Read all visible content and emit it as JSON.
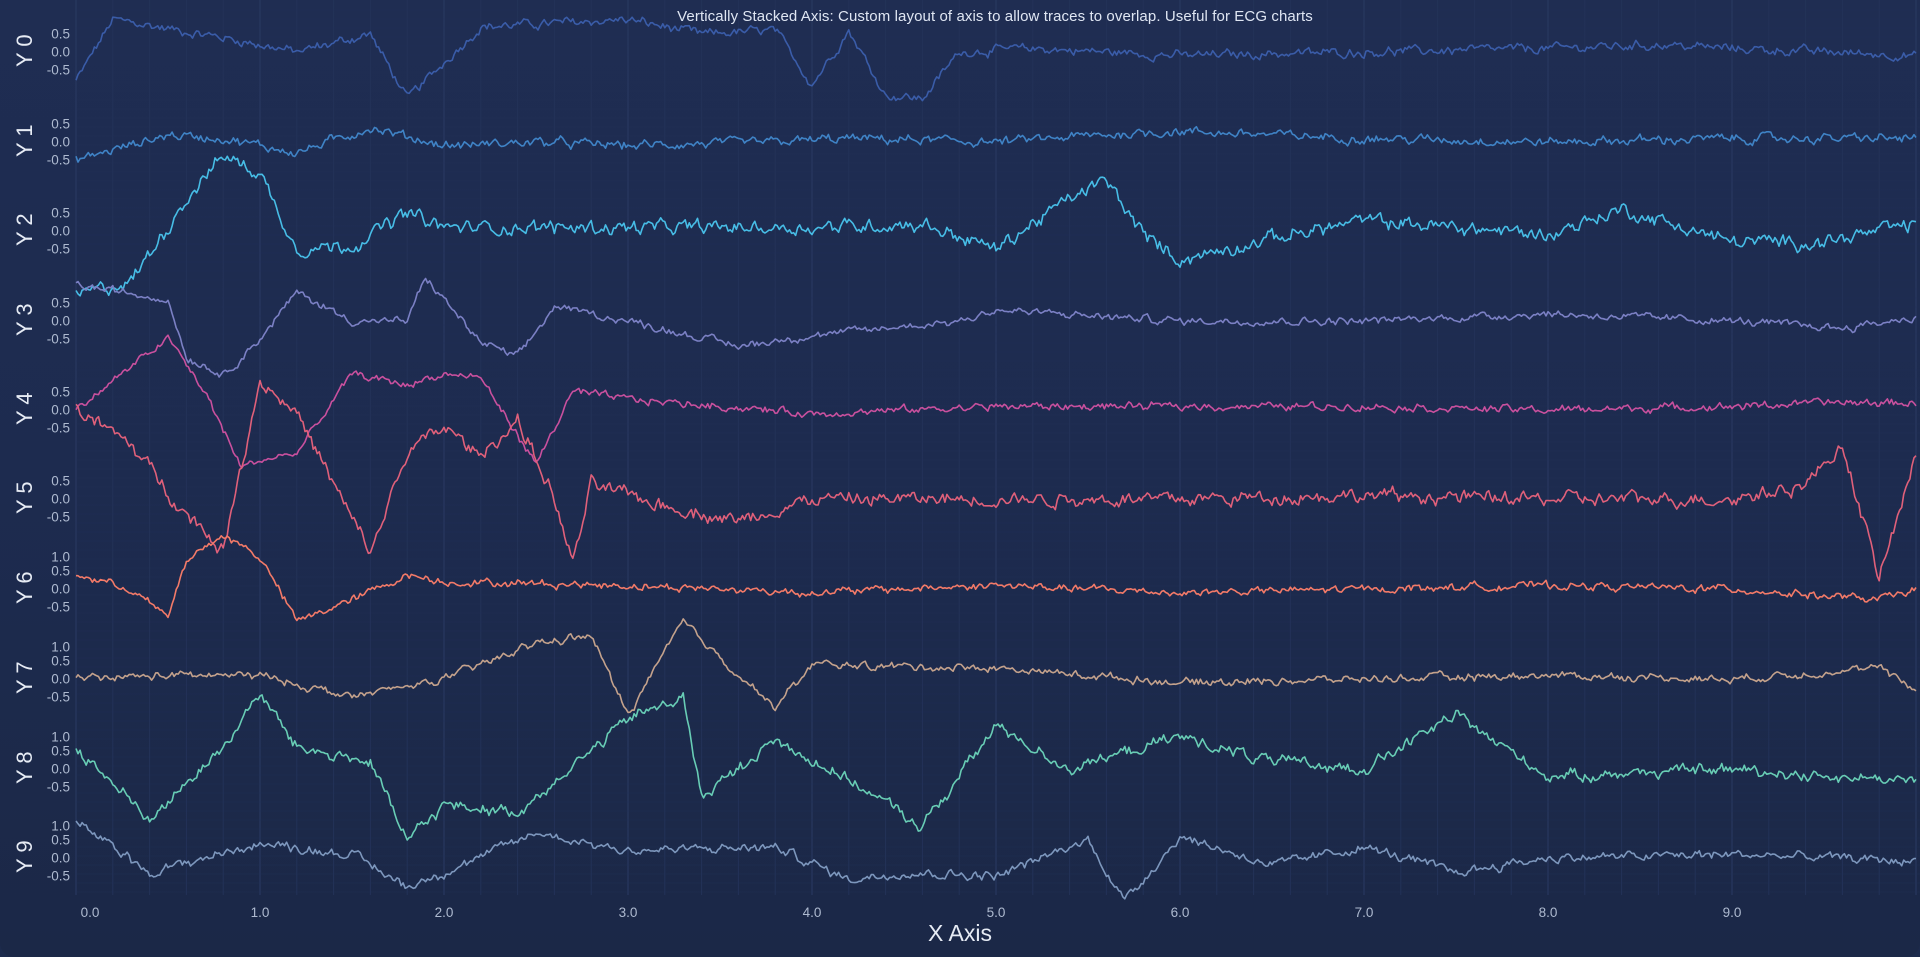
{
  "title": "Vertically Stacked Axis: Custom layout of axis to allow traces to overlap. Useful for ECG charts",
  "x_axis": {
    "title": "X Axis",
    "ticks": [
      "0.0",
      "1.0",
      "2.0",
      "3.0",
      "4.0",
      "5.0",
      "6.0",
      "7.0",
      "8.0",
      "9.0"
    ]
  },
  "y_axes": [
    {
      "title": "Y 0",
      "ticks": [
        "0.5",
        "0.0",
        "-0.5"
      ],
      "color": "#3a5ca8"
    },
    {
      "title": "Y 1",
      "ticks": [
        "0.5",
        "0.0",
        "-0.5"
      ],
      "color": "#3f83c6"
    },
    {
      "title": "Y 2",
      "ticks": [
        "0.5",
        "0.0",
        "-0.5"
      ],
      "color": "#47bde6"
    },
    {
      "title": "Y 3",
      "ticks": [
        "0.5",
        "0.0",
        "-0.5"
      ],
      "color": "#7b80c4"
    },
    {
      "title": "Y 4",
      "ticks": [
        "0.5",
        "0.0",
        "-0.5"
      ],
      "color": "#c9509e"
    },
    {
      "title": "Y 5",
      "ticks": [
        "0.5",
        "0.0",
        "-0.5"
      ],
      "color": "#e0607a"
    },
    {
      "title": "Y 6",
      "ticks": [
        "1.0",
        "0.5",
        "0.0",
        "-0.5"
      ],
      "color": "#f37a68"
    },
    {
      "title": "Y 7",
      "ticks": [
        "1.0",
        "0.5",
        "0.0",
        "-0.5"
      ],
      "color": "#c4a28c"
    },
    {
      "title": "Y 8",
      "ticks": [
        "1.0",
        "0.5",
        "0.0",
        "-0.5"
      ],
      "color": "#68cdb5"
    },
    {
      "title": "Y 9",
      "ticks": [
        "1.0",
        "0.5",
        "0.0",
        "-0.5"
      ],
      "color": "#7d97bd"
    }
  ],
  "chart_data": {
    "type": "line",
    "title": "Vertically Stacked Axis: Custom layout of axis to allow traces to overlap. Useful for ECG charts",
    "xlabel": "X Axis",
    "ylabel": "",
    "xlim": [
      0,
      10
    ],
    "x_ticks": [
      0,
      1,
      2,
      3,
      4,
      5,
      6,
      7,
      8,
      9
    ],
    "grid": true,
    "legend": "none",
    "layout": "vertically stacked y-axes, traces overlap",
    "series": [
      {
        "name": "Y 0",
        "color": "#3a5ca8",
        "x": [
          0,
          0.2,
          0.8,
          1.2,
          1.6,
          1.8,
          2.2,
          2.6,
          3.0,
          3.4,
          3.8,
          4.0,
          4.2,
          4.4,
          4.6,
          4.8,
          5.2,
          6.0,
          7.0,
          8.0,
          8.6,
          9.0,
          9.5,
          10.0
        ],
        "values": [
          -0.8,
          0.9,
          0.4,
          0.0,
          0.5,
          -1.3,
          0.7,
          0.8,
          0.9,
          0.5,
          0.6,
          -0.9,
          0.6,
          -1.2,
          -1.3,
          0.0,
          0.1,
          -0.1,
          0.0,
          0.1,
          0.2,
          0.1,
          0.0,
          -0.1
        ]
      },
      {
        "name": "Y 1",
        "color": "#3f83c6",
        "x": [
          0,
          0.5,
          0.8,
          1.2,
          1.6,
          2.0,
          2.5,
          3.0,
          3.8,
          4.2,
          5.0,
          5.6,
          6.0,
          7.0,
          8.0,
          9.0,
          10.0
        ],
        "values": [
          -0.5,
          0.2,
          0.1,
          -0.3,
          0.4,
          -0.1,
          0.0,
          -0.1,
          0.0,
          0.1,
          0.0,
          0.2,
          0.3,
          0.1,
          0.0,
          0.1,
          0.1
        ]
      },
      {
        "name": "Y 2",
        "color": "#47bde6",
        "x": [
          0,
          0.3,
          0.6,
          0.8,
          1.0,
          1.2,
          1.5,
          1.8,
          2.0,
          3.0,
          4.0,
          4.6,
          5.0,
          5.4,
          5.6,
          5.8,
          6.0,
          6.5,
          7.0,
          8.0,
          8.4,
          9.0,
          9.5,
          10.0
        ],
        "values": [
          -1.8,
          -1.4,
          0.9,
          2.1,
          1.6,
          -0.5,
          -0.4,
          0.5,
          0.1,
          0.1,
          0.1,
          0.2,
          -0.5,
          0.9,
          1.4,
          -0.1,
          -0.8,
          -0.2,
          0.3,
          -0.1,
          0.6,
          -0.3,
          -0.3,
          0.2
        ]
      },
      {
        "name": "Y 3",
        "color": "#7b80c4",
        "x": [
          0,
          0.5,
          0.6,
          0.8,
          1.0,
          1.2,
          1.5,
          1.8,
          1.9,
          2.2,
          2.4,
          2.6,
          3.0,
          3.6,
          4.0,
          4.8,
          5.0,
          6.0,
          7.0,
          8.0,
          9.0,
          9.6,
          10.0
        ],
        "values": [
          1.0,
          0.6,
          -1.0,
          -1.5,
          -0.5,
          0.8,
          0.0,
          0.0,
          1.2,
          -0.6,
          -1.0,
          0.4,
          0.0,
          -0.7,
          -0.4,
          0.0,
          0.3,
          0.0,
          0.0,
          0.2,
          0.0,
          -0.2,
          0.1
        ]
      },
      {
        "name": "Y 4",
        "color": "#c9509e",
        "x": [
          0,
          0.3,
          0.5,
          0.7,
          0.9,
          1.0,
          1.2,
          1.5,
          1.8,
          2.0,
          2.2,
          2.5,
          2.7,
          3.0,
          4.0,
          5.0,
          6.0,
          7.0,
          8.0,
          9.0,
          9.5,
          10.0
        ],
        "values": [
          0.0,
          1.2,
          2.0,
          0.5,
          -1.6,
          -1.4,
          -1.2,
          1.0,
          0.7,
          1.0,
          0.9,
          -1.5,
          0.5,
          0.3,
          -0.1,
          0.1,
          0.1,
          0.1,
          0.0,
          0.1,
          0.2,
          0.2
        ]
      },
      {
        "name": "Y 5",
        "color": "#e0607a",
        "x": [
          0,
          0.3,
          0.6,
          0.8,
          1.0,
          1.2,
          1.4,
          1.6,
          1.8,
          2.0,
          2.2,
          2.4,
          2.6,
          2.7,
          2.8,
          3.0,
          3.2,
          3.6,
          4.0,
          5.0,
          6.0,
          7.0,
          8.0,
          9.0,
          9.4,
          9.6,
          9.8,
          10.0
        ],
        "values": [
          2.5,
          1.5,
          -0.4,
          -1.4,
          3.3,
          2.4,
          0.4,
          -1.5,
          1.3,
          2.0,
          1.2,
          2.2,
          0.0,
          -1.8,
          0.4,
          0.1,
          -0.2,
          -0.6,
          0.0,
          0.0,
          0.0,
          0.1,
          0.0,
          0.0,
          0.4,
          1.5,
          -2.2,
          1.2
        ]
      },
      {
        "name": "Y 6",
        "color": "#f37a68",
        "x": [
          0,
          0.3,
          0.5,
          0.6,
          0.8,
          1.0,
          1.2,
          1.5,
          1.8,
          2.0,
          3.0,
          4.0,
          5.0,
          6.0,
          7.0,
          8.0,
          9.0,
          9.8,
          10.0
        ],
        "values": [
          0.4,
          0.0,
          -0.8,
          0.8,
          1.5,
          0.9,
          -0.9,
          -0.3,
          0.4,
          0.2,
          0.1,
          -0.1,
          0.1,
          -0.1,
          0.0,
          0.1,
          0.0,
          -0.3,
          0.0
        ]
      },
      {
        "name": "Y 7",
        "color": "#c4a28c",
        "x": [
          0,
          0.5,
          1.0,
          1.5,
          2.0,
          2.5,
          2.8,
          3.0,
          3.3,
          3.5,
          3.8,
          4.0,
          5.0,
          6.0,
          7.0,
          8.0,
          9.0,
          9.8,
          10.0
        ],
        "values": [
          0.0,
          0.1,
          0.1,
          -0.5,
          0.0,
          1.0,
          1.2,
          -1.0,
          1.6,
          0.6,
          -0.8,
          0.4,
          0.3,
          -0.1,
          0.0,
          0.1,
          0.0,
          0.3,
          -0.3
        ]
      },
      {
        "name": "Y 8",
        "color": "#68cdb5",
        "x": [
          0,
          0.4,
          0.8,
          1.0,
          1.2,
          1.6,
          1.8,
          2.0,
          2.4,
          2.8,
          3.0,
          3.3,
          3.4,
          3.8,
          4.2,
          4.6,
          5.0,
          5.4,
          6.0,
          6.5,
          7.0,
          7.5,
          8.0,
          9.0,
          9.5,
          10.0
        ],
        "values": [
          0.6,
          -1.4,
          0.6,
          2.1,
          0.6,
          0.2,
          -2.0,
          -1.0,
          -1.2,
          0.5,
          1.4,
          2.0,
          -0.8,
          0.8,
          -0.3,
          -1.6,
          1.2,
          0.0,
          0.9,
          0.2,
          0.0,
          1.5,
          -0.2,
          0.0,
          -0.2,
          -0.3
        ]
      },
      {
        "name": "Y 9",
        "color": "#7d97bd",
        "x": [
          0,
          0.4,
          1.0,
          1.5,
          1.8,
          2.0,
          2.5,
          3.0,
          3.8,
          4.2,
          4.5,
          5.0,
          5.5,
          5.7,
          6.0,
          6.5,
          7.0,
          7.5,
          8.0,
          9.0,
          9.6,
          10.0
        ],
        "values": [
          1.0,
          -0.4,
          0.4,
          0.1,
          -0.8,
          -0.4,
          0.7,
          0.2,
          0.3,
          -0.6,
          -0.4,
          -0.5,
          0.5,
          -1.2,
          0.6,
          -0.2,
          0.3,
          -0.4,
          0.0,
          0.1,
          0.0,
          -0.1
        ]
      }
    ]
  }
}
